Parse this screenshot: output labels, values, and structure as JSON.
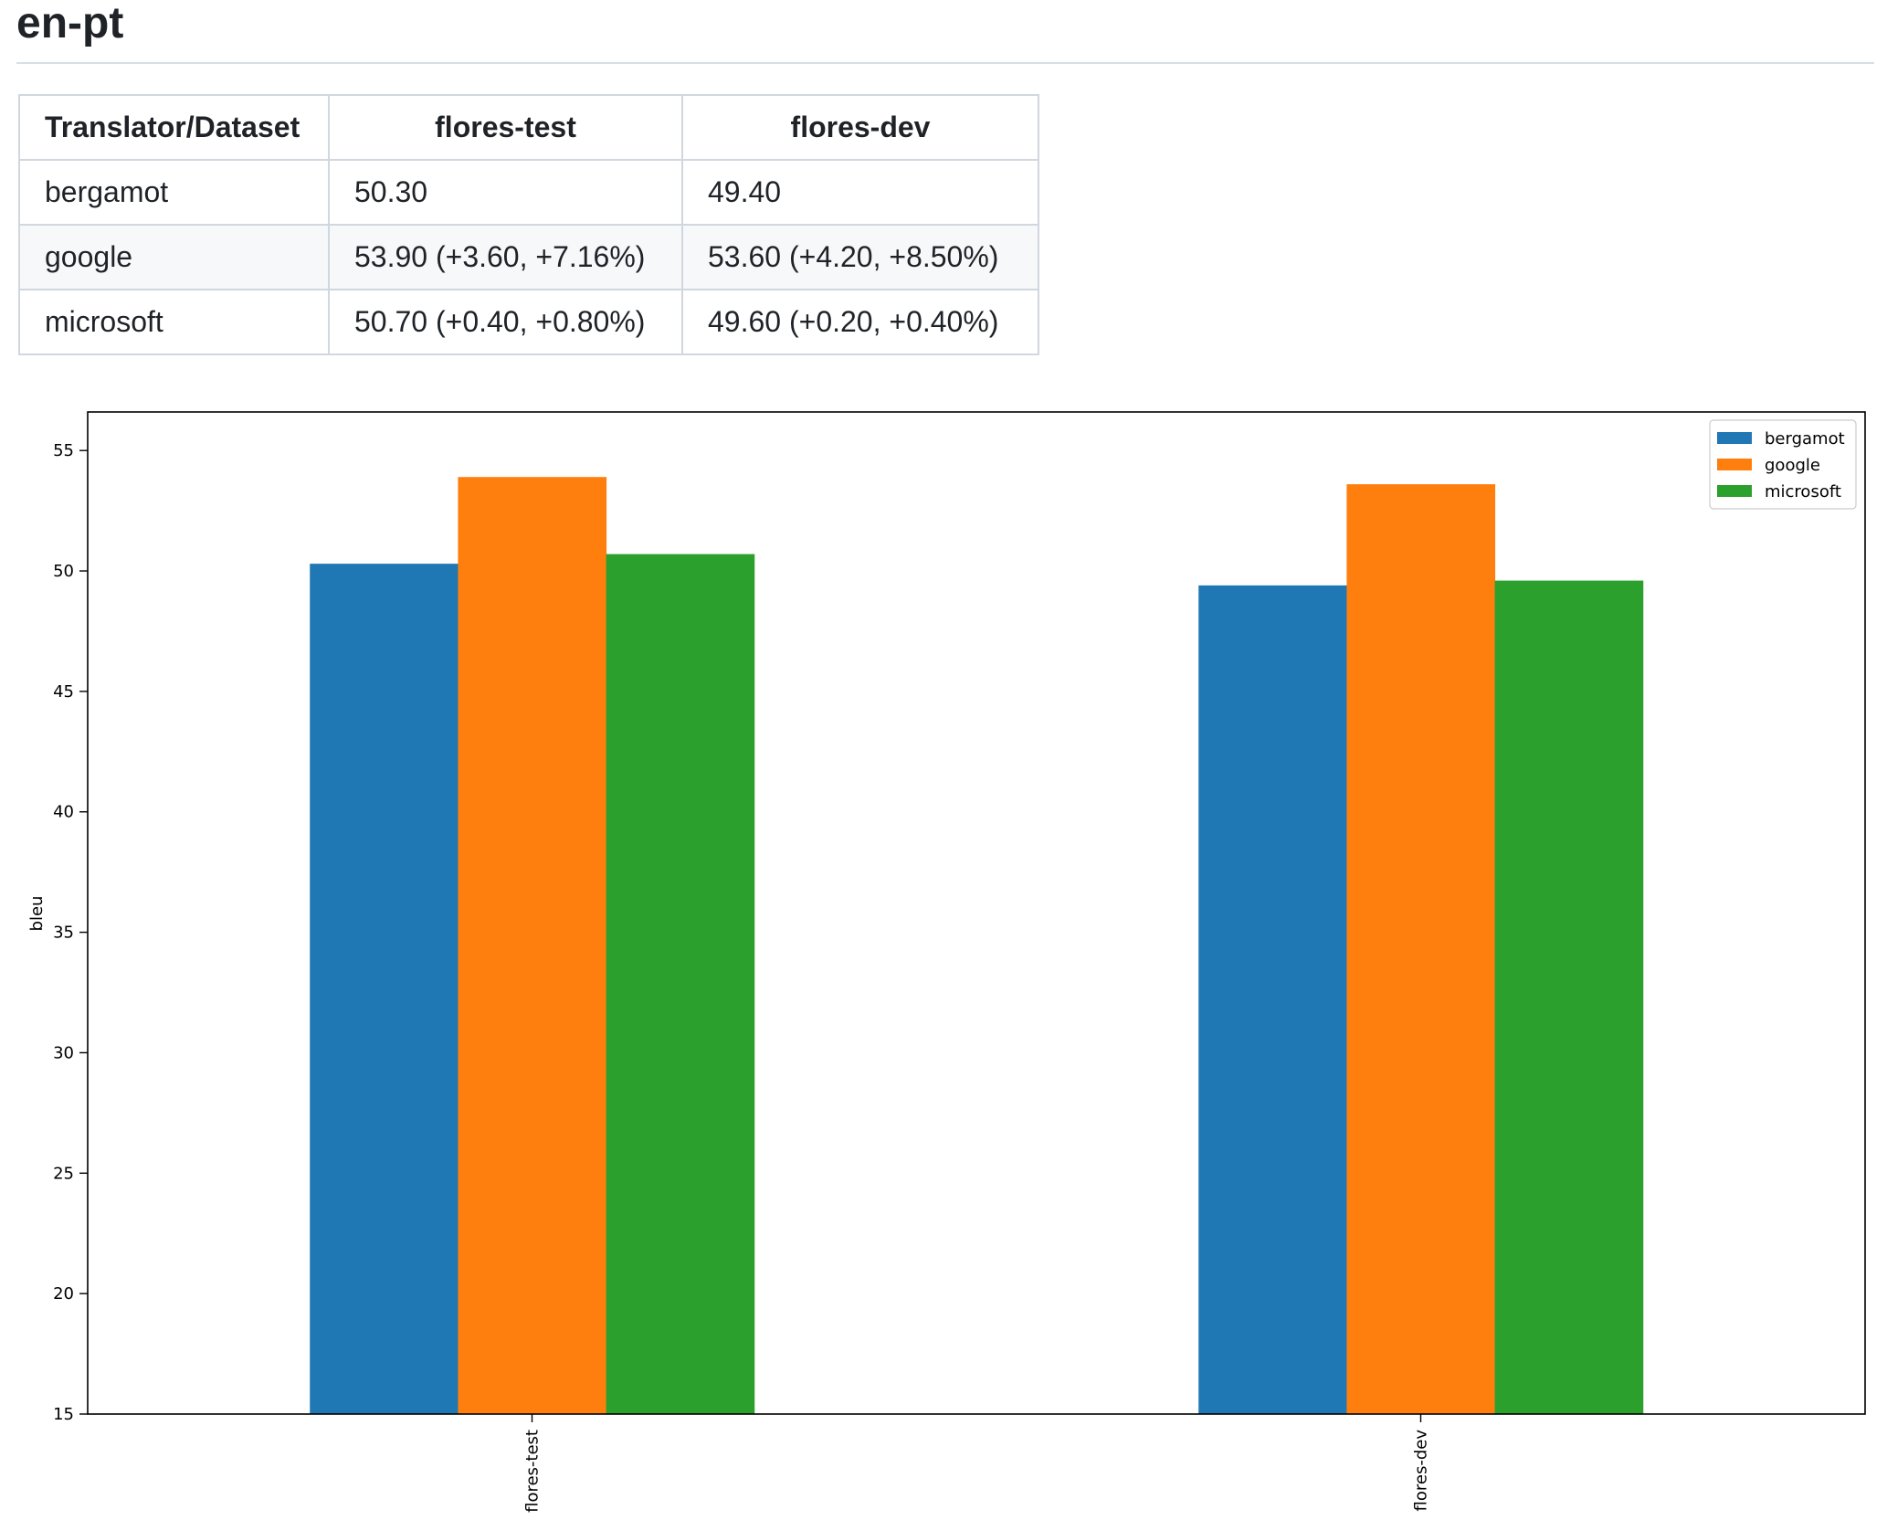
{
  "page": {
    "title": "en-pt"
  },
  "table": {
    "headers": [
      "Translator/Dataset",
      "flores-test",
      "flores-dev"
    ],
    "rows": [
      {
        "name": "bergamot",
        "flores_test": "50.30",
        "flores_dev": "49.40"
      },
      {
        "name": "google",
        "flores_test": "53.90 (+3.60, +7.16%)",
        "flores_dev": "53.60 (+4.20, +8.50%)"
      },
      {
        "name": "microsoft",
        "flores_test": "50.70 (+0.40, +0.80%)",
        "flores_dev": "49.60 (+0.20, +0.40%)"
      }
    ]
  },
  "chart_data": {
    "type": "bar",
    "title": "",
    "xlabel": "",
    "ylabel": "bleu",
    "categories": [
      "flores-test",
      "flores-dev"
    ],
    "series": [
      {
        "name": "bergamot",
        "values": [
          50.3,
          49.4
        ],
        "color": "#1f77b4"
      },
      {
        "name": "google",
        "values": [
          53.9,
          53.6
        ],
        "color": "#ff7f0e"
      },
      {
        "name": "microsoft",
        "values": [
          50.7,
          49.6
        ],
        "color": "#2ca02c"
      }
    ],
    "ylim": [
      15,
      56.6
    ],
    "yticks": [
      15,
      20,
      25,
      30,
      35,
      40,
      45,
      50,
      55
    ],
    "legend": "top-right",
    "grid": false
  }
}
